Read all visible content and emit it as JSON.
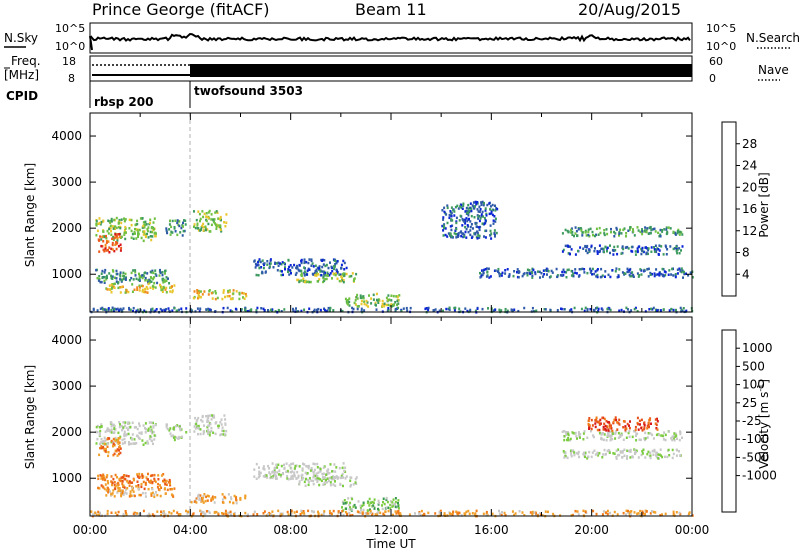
{
  "header": {
    "station": "Prince George (fitACF)",
    "beam": "Beam 11",
    "date": "20/Aug/2015"
  },
  "strip_panels": {
    "nsky": {
      "label": "N.Sky",
      "left_ticks": [
        "10^5",
        "10^0"
      ],
      "right_ticks": [
        "10^5",
        "10^0"
      ],
      "right_label": "N.Search"
    },
    "freq": {
      "label_line1": "Freq.",
      "label_line2": "[MHz]",
      "left_ticks": [
        "18",
        "8"
      ],
      "right_ticks": [
        "60",
        "0"
      ],
      "right_label": "Nave"
    },
    "cpid": {
      "label": "CPID",
      "programs": [
        {
          "name": "rbsp 200",
          "start_hour": 0,
          "end_hour": 4
        },
        {
          "name": "twofsound 3503",
          "start_hour": 4,
          "end_hour": 24
        }
      ]
    }
  },
  "colors": {
    "power": [
      "#0a24d6",
      "#2e5aa8",
      "#3c9a5e",
      "#6fc042",
      "#e8c62c",
      "#f08a1c",
      "#ec5a1e",
      "#d8141a"
    ],
    "velocity": [
      "#2a3cb0",
      "#3a66b4",
      "#3a9a52",
      "#7ccc40",
      "#c8c8c8",
      "#c8c8c8",
      "#f0a028",
      "#f07a18",
      "#e85018",
      "#d81818"
    ]
  },
  "chart_data": [
    {
      "type": "heatmap",
      "name": "power",
      "ylabel": "Slant Range [km]",
      "ylim": [
        180,
        4500
      ],
      "xlim": [
        0,
        24
      ],
      "yticks": [
        "1000",
        "2000",
        "3000",
        "4000"
      ],
      "xticks": [],
      "colorbar": {
        "label": "Power [dB]",
        "range": [
          0,
          32
        ],
        "tick_labels": [
          "4",
          "8",
          "12",
          "16",
          "20",
          "24",
          "28"
        ]
      },
      "regions": [
        {
          "t0": 0.2,
          "t1": 2.6,
          "r0": 1750,
          "r1": 2250,
          "level": 3
        },
        {
          "t0": 0.3,
          "t1": 1.2,
          "r0": 1500,
          "r1": 1900,
          "level": 6
        },
        {
          "t0": 0.2,
          "t1": 3.2,
          "r0": 820,
          "r1": 1120,
          "level": 2
        },
        {
          "t0": 0.6,
          "t1": 3.4,
          "r0": 620,
          "r1": 820,
          "level": 4
        },
        {
          "t0": 3.0,
          "t1": 3.8,
          "r0": 1850,
          "r1": 2200,
          "level": 2
        },
        {
          "t0": 4.1,
          "t1": 5.4,
          "r0": 1950,
          "r1": 2400,
          "level": 3
        },
        {
          "t0": 4.0,
          "t1": 6.2,
          "r0": 480,
          "r1": 680,
          "level": 4
        },
        {
          "t0": 6.5,
          "t1": 10.2,
          "r0": 1000,
          "r1": 1350,
          "level": 1
        },
        {
          "t0": 8.2,
          "t1": 10.6,
          "r0": 850,
          "r1": 1050,
          "level": 3
        },
        {
          "t0": 10.0,
          "t1": 12.3,
          "r0": 320,
          "r1": 600,
          "level": 3
        },
        {
          "t0": 14.0,
          "t1": 16.2,
          "r0": 1800,
          "r1": 2600,
          "level": 1
        },
        {
          "t0": 18.8,
          "t1": 23.6,
          "r0": 1850,
          "r1": 2050,
          "level": 2
        },
        {
          "t0": 18.8,
          "t1": 23.6,
          "r0": 1450,
          "r1": 1650,
          "level": 1
        },
        {
          "t0": 15.5,
          "t1": 24.0,
          "r0": 950,
          "r1": 1150,
          "level": 1
        },
        {
          "t0": 0.0,
          "t1": 24.0,
          "r0": 200,
          "r1": 300,
          "level": 1
        }
      ]
    },
    {
      "type": "heatmap",
      "name": "velocity",
      "ylabel": "Slant Range [km]",
      "xlabel": "Time UT",
      "ylim": [
        180,
        4500
      ],
      "xlim": [
        0,
        24
      ],
      "yticks": [
        "1000",
        "2000",
        "3000",
        "4000"
      ],
      "xticks": [
        "00:00",
        "04:00",
        "08:00",
        "12:00",
        "16:00",
        "20:00",
        "00:00"
      ],
      "colorbar": {
        "label": "Velocity [m s",
        "label_sup": "-1",
        "label_close": "]",
        "tick_labels": [
          "1000",
          "500",
          "100",
          "25",
          "-25",
          "-100",
          "-500",
          "-1000"
        ]
      },
      "regions": [
        {
          "t0": 0.2,
          "t1": 2.6,
          "r0": 1750,
          "r1": 2250,
          "level": 4
        },
        {
          "t0": 0.3,
          "t1": 1.2,
          "r0": 1500,
          "r1": 1900,
          "level": 7
        },
        {
          "t0": 0.2,
          "t1": 3.2,
          "r0": 780,
          "r1": 1120,
          "level": 7
        },
        {
          "t0": 0.6,
          "t1": 3.4,
          "r0": 620,
          "r1": 820,
          "level": 6
        },
        {
          "t0": 3.0,
          "t1": 3.8,
          "r0": 1850,
          "r1": 2200,
          "level": 4
        },
        {
          "t0": 4.1,
          "t1": 5.4,
          "r0": 1950,
          "r1": 2400,
          "level": 4
        },
        {
          "t0": 4.0,
          "t1": 6.2,
          "r0": 480,
          "r1": 680,
          "level": 6
        },
        {
          "t0": 6.5,
          "t1": 10.2,
          "r0": 1000,
          "r1": 1350,
          "level": 4
        },
        {
          "t0": 8.2,
          "t1": 10.6,
          "r0": 850,
          "r1": 1050,
          "level": 4
        },
        {
          "t0": 10.0,
          "t1": 12.3,
          "r0": 320,
          "r1": 600,
          "level": 3
        },
        {
          "t0": 18.8,
          "t1": 23.6,
          "r0": 1850,
          "r1": 2050,
          "level": 4
        },
        {
          "t0": 19.8,
          "t1": 22.6,
          "r0": 2050,
          "r1": 2350,
          "level": 8
        },
        {
          "t0": 18.8,
          "t1": 23.6,
          "r0": 1450,
          "r1": 1650,
          "level": 4
        },
        {
          "t0": 0.0,
          "t1": 24.0,
          "r0": 200,
          "r1": 320,
          "level": 6
        }
      ]
    }
  ]
}
